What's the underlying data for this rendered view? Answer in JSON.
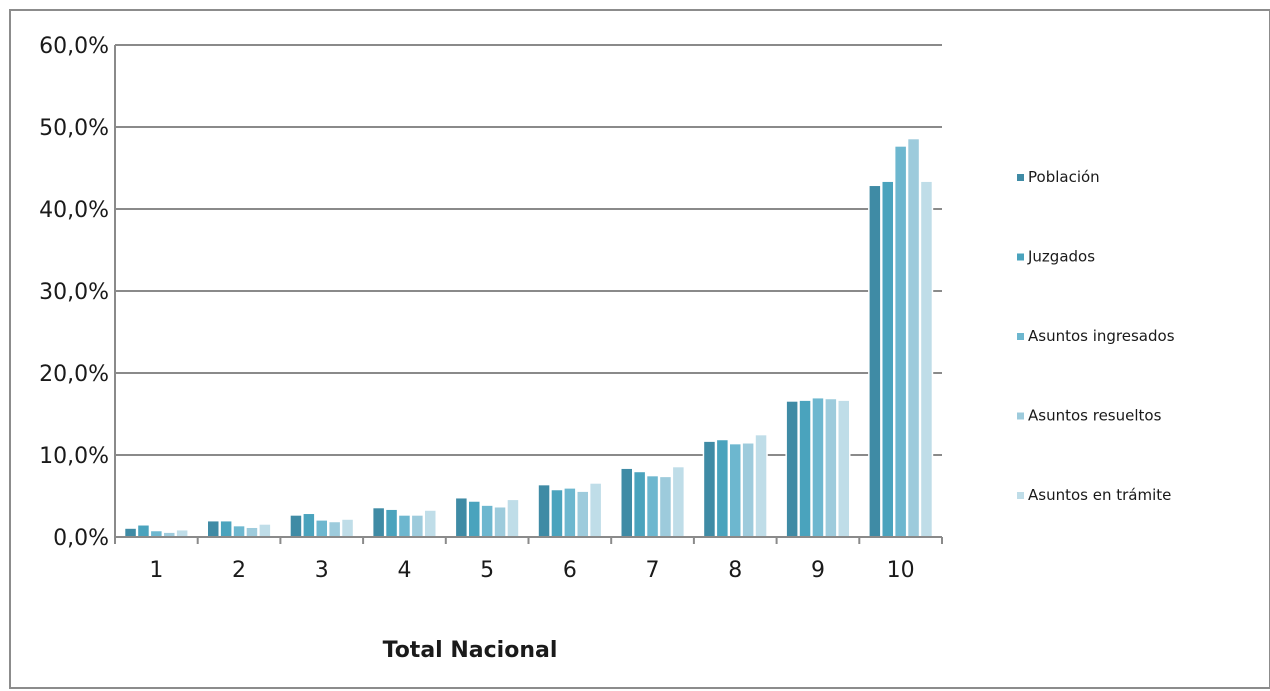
{
  "chart_data": {
    "type": "bar",
    "title": "",
    "xlabel": "Total Nacional",
    "ylabel": "",
    "categories": [
      "1",
      "2",
      "3",
      "4",
      "5",
      "6",
      "7",
      "8",
      "9",
      "10"
    ],
    "ylim": [
      0,
      60
    ],
    "yticks": [
      "0,0%",
      "10,0%",
      "20,0%",
      "30,0%",
      "40,0%",
      "50,0%",
      "60,0%"
    ],
    "grid": true,
    "legend_position": "right",
    "series": [
      {
        "name": "Población",
        "color": "#3f8ba5",
        "values": [
          1.0,
          1.9,
          2.6,
          3.5,
          4.7,
          6.3,
          8.3,
          11.6,
          16.5,
          42.8
        ]
      },
      {
        "name": "Juzgados",
        "color": "#4aa3bd",
        "values": [
          1.4,
          1.9,
          2.8,
          3.3,
          4.3,
          5.7,
          7.9,
          11.8,
          16.6,
          43.3
        ]
      },
      {
        "name": "Asuntos ingresados",
        "color": "#6db7cf",
        "values": [
          0.7,
          1.3,
          2.0,
          2.6,
          3.8,
          5.9,
          7.4,
          11.3,
          16.9,
          47.6
        ]
      },
      {
        "name": "Asuntos resueltos",
        "color": "#9dcbdc",
        "values": [
          0.5,
          1.1,
          1.8,
          2.6,
          3.6,
          5.5,
          7.3,
          11.4,
          16.8,
          48.5
        ]
      },
      {
        "name": "Asuntos en trámite",
        "color": "#bfdde8",
        "values": [
          0.8,
          1.5,
          2.1,
          3.2,
          4.5,
          6.5,
          8.5,
          12.4,
          16.6,
          43.3
        ]
      }
    ]
  }
}
